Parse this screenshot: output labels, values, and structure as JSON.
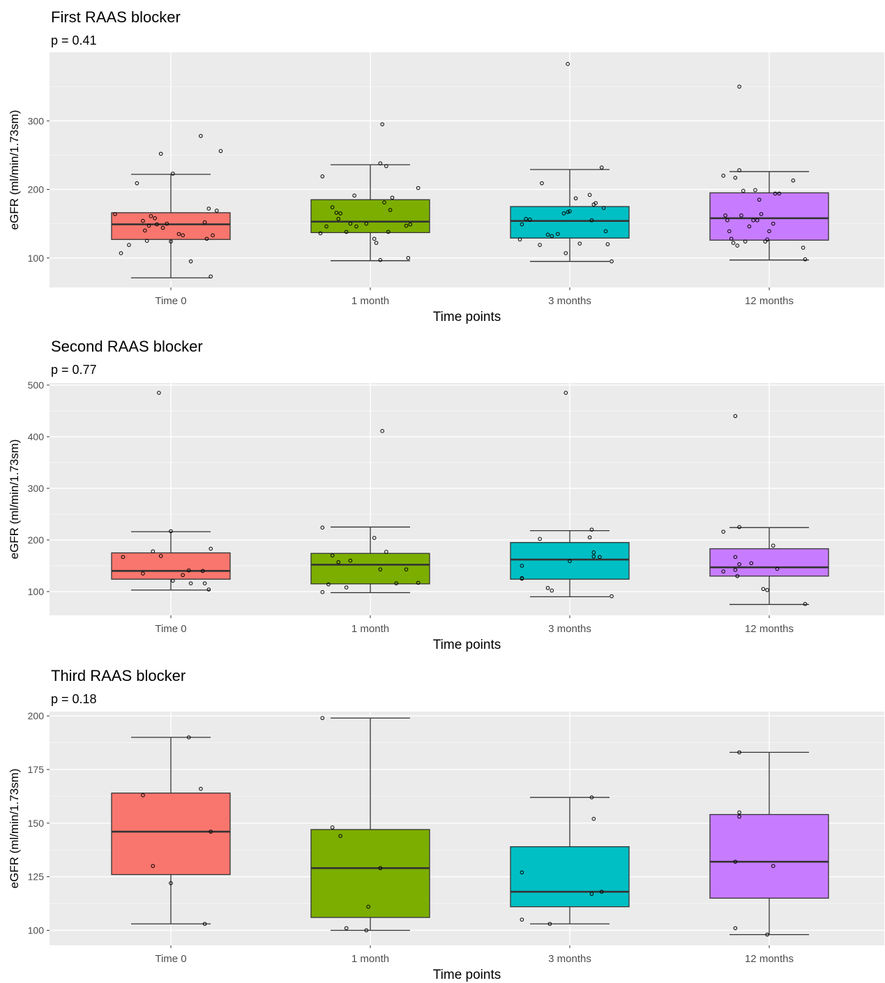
{
  "chart_data": [
    {
      "type": "box",
      "title": "First RAAS blocker",
      "subtitle": "p = 0.41",
      "xlabel": "Time points",
      "ylabel": "eGFR (ml/min/1.73sm)",
      "categories": [
        "Time 0",
        "1 month",
        "3 months",
        "12 months"
      ],
      "ylim": [
        57,
        400
      ],
      "yticks": [
        100,
        200,
        300
      ],
      "grid": true,
      "colors": [
        "#F8766D",
        "#7CAE00",
        "#00BFC4",
        "#C77CFF"
      ],
      "boxes": [
        {
          "lower_whisker": 71,
          "q1": 127,
          "median": 149,
          "q3": 166,
          "upper_whisker": 222
        },
        {
          "lower_whisker": 96,
          "q1": 137,
          "median": 153,
          "q3": 185,
          "upper_whisker": 236
        },
        {
          "lower_whisker": 95,
          "q1": 129,
          "median": 154,
          "q3": 175,
          "upper_whisker": 229
        },
        {
          "lower_whisker": 97,
          "q1": 126,
          "median": 158,
          "q3": 195,
          "upper_whisker": 226
        }
      ],
      "points": [
        [
          {
            "dx": -0.28,
            "y": 164
          },
          {
            "dx": -0.25,
            "y": 107
          },
          {
            "dx": -0.21,
            "y": 119
          },
          {
            "dx": -0.17,
            "y": 209
          },
          {
            "dx": -0.14,
            "y": 154
          },
          {
            "dx": -0.13,
            "y": 140
          },
          {
            "dx": -0.12,
            "y": 125
          },
          {
            "dx": -0.11,
            "y": 147
          },
          {
            "dx": -0.1,
            "y": 161
          },
          {
            "dx": -0.08,
            "y": 158
          },
          {
            "dx": -0.07,
            "y": 149
          },
          {
            "dx": -0.05,
            "y": 252
          },
          {
            "dx": -0.04,
            "y": 144
          },
          {
            "dx": -0.02,
            "y": 150
          },
          {
            "dx": 0.0,
            "y": 124
          },
          {
            "dx": 0.01,
            "y": 223
          },
          {
            "dx": 0.04,
            "y": 135
          },
          {
            "dx": 0.06,
            "y": 133
          },
          {
            "dx": 0.1,
            "y": 95
          },
          {
            "dx": 0.15,
            "y": 278
          },
          {
            "dx": 0.17,
            "y": 152
          },
          {
            "dx": 0.18,
            "y": 128
          },
          {
            "dx": 0.19,
            "y": 172
          },
          {
            "dx": 0.2,
            "y": 73
          },
          {
            "dx": 0.21,
            "y": 133
          },
          {
            "dx": 0.23,
            "y": 169
          },
          {
            "dx": 0.25,
            "y": 256
          }
        ],
        [
          {
            "dx": -0.25,
            "y": 136
          },
          {
            "dx": -0.24,
            "y": 219
          },
          {
            "dx": -0.22,
            "y": 146
          },
          {
            "dx": -0.19,
            "y": 174
          },
          {
            "dx": -0.17,
            "y": 166
          },
          {
            "dx": -0.16,
            "y": 157
          },
          {
            "dx": -0.15,
            "y": 165
          },
          {
            "dx": -0.12,
            "y": 138
          },
          {
            "dx": -0.1,
            "y": 150
          },
          {
            "dx": -0.08,
            "y": 191
          },
          {
            "dx": -0.07,
            "y": 146
          },
          {
            "dx": -0.02,
            "y": 150
          },
          {
            "dx": 0.02,
            "y": 128
          },
          {
            "dx": 0.03,
            "y": 122
          },
          {
            "dx": 0.05,
            "y": 97
          },
          {
            "dx": 0.05,
            "y": 238
          },
          {
            "dx": 0.06,
            "y": 295
          },
          {
            "dx": 0.07,
            "y": 181
          },
          {
            "dx": 0.08,
            "y": 234
          },
          {
            "dx": 0.09,
            "y": 138
          },
          {
            "dx": 0.1,
            "y": 170
          },
          {
            "dx": 0.11,
            "y": 188
          },
          {
            "dx": 0.18,
            "y": 147
          },
          {
            "dx": 0.19,
            "y": 100
          },
          {
            "dx": 0.2,
            "y": 149
          },
          {
            "dx": 0.24,
            "y": 202
          }
        ],
        [
          {
            "dx": -0.25,
            "y": 127
          },
          {
            "dx": -0.24,
            "y": 149
          },
          {
            "dx": -0.22,
            "y": 157
          },
          {
            "dx": -0.2,
            "y": 156
          },
          {
            "dx": -0.15,
            "y": 119
          },
          {
            "dx": -0.14,
            "y": 209
          },
          {
            "dx": -0.11,
            "y": 134
          },
          {
            "dx": -0.09,
            "y": 132
          },
          {
            "dx": -0.06,
            "y": 135
          },
          {
            "dx": -0.03,
            "y": 165
          },
          {
            "dx": -0.02,
            "y": 107
          },
          {
            "dx": -0.01,
            "y": 167
          },
          {
            "dx": -0.01,
            "y": 383
          },
          {
            "dx": 0.0,
            "y": 168
          },
          {
            "dx": 0.03,
            "y": 187
          },
          {
            "dx": 0.05,
            "y": 121
          },
          {
            "dx": 0.1,
            "y": 192
          },
          {
            "dx": 0.11,
            "y": 155
          },
          {
            "dx": 0.12,
            "y": 178
          },
          {
            "dx": 0.13,
            "y": 180
          },
          {
            "dx": 0.16,
            "y": 232
          },
          {
            "dx": 0.17,
            "y": 173
          },
          {
            "dx": 0.18,
            "y": 139
          },
          {
            "dx": 0.19,
            "y": 120
          },
          {
            "dx": 0.21,
            "y": 95
          }
        ],
        [
          {
            "dx": -0.23,
            "y": 220
          },
          {
            "dx": -0.22,
            "y": 162
          },
          {
            "dx": -0.21,
            "y": 155
          },
          {
            "dx": -0.2,
            "y": 139
          },
          {
            "dx": -0.19,
            "y": 128
          },
          {
            "dx": -0.18,
            "y": 122
          },
          {
            "dx": -0.17,
            "y": 217
          },
          {
            "dx": -0.16,
            "y": 118
          },
          {
            "dx": -0.15,
            "y": 228
          },
          {
            "dx": -0.15,
            "y": 350
          },
          {
            "dx": -0.14,
            "y": 162
          },
          {
            "dx": -0.13,
            "y": 198
          },
          {
            "dx": -0.12,
            "y": 124
          },
          {
            "dx": -0.1,
            "y": 146
          },
          {
            "dx": -0.08,
            "y": 155
          },
          {
            "dx": -0.07,
            "y": 199
          },
          {
            "dx": -0.06,
            "y": 155
          },
          {
            "dx": -0.05,
            "y": 185
          },
          {
            "dx": -0.04,
            "y": 164
          },
          {
            "dx": -0.02,
            "y": 124
          },
          {
            "dx": -0.01,
            "y": 127
          },
          {
            "dx": 0.0,
            "y": 139
          },
          {
            "dx": 0.02,
            "y": 150
          },
          {
            "dx": 0.03,
            "y": 194
          },
          {
            "dx": 0.05,
            "y": 194
          },
          {
            "dx": 0.12,
            "y": 213
          },
          {
            "dx": 0.17,
            "y": 115
          },
          {
            "dx": 0.18,
            "y": 98
          }
        ]
      ]
    },
    {
      "type": "box",
      "title": "Second RAAS blocker",
      "subtitle": "p = 0.77",
      "xlabel": "Time points",
      "ylabel": "eGFR (ml/min/1.73sm)",
      "categories": [
        "Time 0",
        "1 month",
        "3 months",
        "12 months"
      ],
      "ylim": [
        54,
        504
      ],
      "yticks": [
        100,
        200,
        300,
        400,
        500
      ],
      "grid": true,
      "colors": [
        "#F8766D",
        "#7CAE00",
        "#00BFC4",
        "#C77CFF"
      ],
      "boxes": [
        {
          "lower_whisker": 103,
          "q1": 124,
          "median": 140,
          "q3": 175,
          "upper_whisker": 216
        },
        {
          "lower_whisker": 98,
          "q1": 115,
          "median": 152,
          "q3": 174,
          "upper_whisker": 225
        },
        {
          "lower_whisker": 90,
          "q1": 124,
          "median": 162,
          "q3": 195,
          "upper_whisker": 218
        },
        {
          "lower_whisker": 75,
          "q1": 130,
          "median": 147,
          "q3": 183,
          "upper_whisker": 224
        }
      ],
      "points": [
        [
          {
            "dx": -0.24,
            "y": 167
          },
          {
            "dx": -0.14,
            "y": 135
          },
          {
            "dx": -0.09,
            "y": 178
          },
          {
            "dx": -0.06,
            "y": 485
          },
          {
            "dx": -0.05,
            "y": 169
          },
          {
            "dx": 0.0,
            "y": 217
          },
          {
            "dx": 0.01,
            "y": 121
          },
          {
            "dx": 0.06,
            "y": 132
          },
          {
            "dx": 0.09,
            "y": 141
          },
          {
            "dx": 0.1,
            "y": 116
          },
          {
            "dx": 0.16,
            "y": 140
          },
          {
            "dx": 0.17,
            "y": 116
          },
          {
            "dx": 0.19,
            "y": 104
          },
          {
            "dx": 0.2,
            "y": 183
          }
        ],
        [
          {
            "dx": -0.24,
            "y": 99
          },
          {
            "dx": -0.24,
            "y": 224
          },
          {
            "dx": -0.21,
            "y": 114
          },
          {
            "dx": -0.19,
            "y": 170
          },
          {
            "dx": -0.16,
            "y": 157
          },
          {
            "dx": -0.12,
            "y": 108
          },
          {
            "dx": -0.1,
            "y": 160
          },
          {
            "dx": 0.02,
            "y": 204
          },
          {
            "dx": 0.05,
            "y": 143
          },
          {
            "dx": 0.06,
            "y": 411
          },
          {
            "dx": 0.08,
            "y": 177
          },
          {
            "dx": 0.13,
            "y": 116
          },
          {
            "dx": 0.18,
            "y": 143
          },
          {
            "dx": 0.24,
            "y": 117
          }
        ],
        [
          {
            "dx": -0.24,
            "y": 150
          },
          {
            "dx": -0.24,
            "y": 126
          },
          {
            "dx": -0.24,
            "y": 125
          },
          {
            "dx": -0.15,
            "y": 202
          },
          {
            "dx": -0.11,
            "y": 107
          },
          {
            "dx": -0.09,
            "y": 102
          },
          {
            "dx": -0.02,
            "y": 485
          },
          {
            "dx": 0.0,
            "y": 159
          },
          {
            "dx": 0.1,
            "y": 205
          },
          {
            "dx": 0.11,
            "y": 220
          },
          {
            "dx": 0.12,
            "y": 176
          },
          {
            "dx": 0.12,
            "y": 168
          },
          {
            "dx": 0.15,
            "y": 167
          },
          {
            "dx": 0.21,
            "y": 91
          }
        ],
        [
          {
            "dx": -0.23,
            "y": 216
          },
          {
            "dx": -0.23,
            "y": 139
          },
          {
            "dx": -0.17,
            "y": 167
          },
          {
            "dx": -0.17,
            "y": 142
          },
          {
            "dx": -0.16,
            "y": 130
          },
          {
            "dx": -0.15,
            "y": 225
          },
          {
            "dx": -0.15,
            "y": 153
          },
          {
            "dx": -0.17,
            "y": 440
          },
          {
            "dx": -0.09,
            "y": 155
          },
          {
            "dx": -0.03,
            "y": 105
          },
          {
            "dx": -0.01,
            "y": 103
          },
          {
            "dx": 0.02,
            "y": 189
          },
          {
            "dx": 0.04,
            "y": 144
          },
          {
            "dx": 0.18,
            "y": 76
          }
        ]
      ]
    },
    {
      "type": "box",
      "title": "Third RAAS blocker",
      "subtitle": "p = 0.18",
      "xlabel": "Time points",
      "ylabel": "eGFR (ml/min/1.73sm)",
      "categories": [
        "Time 0",
        "1 month",
        "3 months",
        "12 months"
      ],
      "ylim": [
        93,
        202
      ],
      "yticks": [
        100,
        125,
        150,
        175,
        200
      ],
      "grid": true,
      "colors": [
        "#F8766D",
        "#7CAE00",
        "#00BFC4",
        "#C77CFF"
      ],
      "boxes": [
        {
          "lower_whisker": 103,
          "q1": 126,
          "median": 146,
          "q3": 164,
          "upper_whisker": 190
        },
        {
          "lower_whisker": 100,
          "q1": 106,
          "median": 129,
          "q3": 147,
          "upper_whisker": 199
        },
        {
          "lower_whisker": 103,
          "q1": 111,
          "median": 118,
          "q3": 139,
          "upper_whisker": 162
        },
        {
          "lower_whisker": 98,
          "q1": 115,
          "median": 132,
          "q3": 154,
          "upper_whisker": 183
        }
      ],
      "points": [
        [
          {
            "dx": -0.14,
            "y": 163
          },
          {
            "dx": -0.09,
            "y": 130
          },
          {
            "dx": 0.0,
            "y": 122
          },
          {
            "dx": 0.09,
            "y": 190
          },
          {
            "dx": 0.15,
            "y": 166
          },
          {
            "dx": 0.17,
            "y": 103
          },
          {
            "dx": 0.2,
            "y": 146
          }
        ],
        [
          {
            "dx": -0.24,
            "y": 199
          },
          {
            "dx": -0.19,
            "y": 148
          },
          {
            "dx": -0.15,
            "y": 144
          },
          {
            "dx": -0.12,
            "y": 101
          },
          {
            "dx": -0.01,
            "y": 111
          },
          {
            "dx": 0.05,
            "y": 129
          },
          {
            "dx": -0.02,
            "y": 100
          }
        ],
        [
          {
            "dx": -0.24,
            "y": 105
          },
          {
            "dx": -0.24,
            "y": 127
          },
          {
            "dx": -0.1,
            "y": 103
          },
          {
            "dx": 0.11,
            "y": 162
          },
          {
            "dx": 0.12,
            "y": 152
          },
          {
            "dx": 0.11,
            "y": 117
          },
          {
            "dx": 0.16,
            "y": 118
          }
        ],
        [
          {
            "dx": -0.17,
            "y": 101
          },
          {
            "dx": -0.17,
            "y": 132
          },
          {
            "dx": -0.15,
            "y": 155
          },
          {
            "dx": -0.15,
            "y": 153
          },
          {
            "dx": -0.15,
            "y": 183
          },
          {
            "dx": 0.02,
            "y": 130
          },
          {
            "dx": -0.01,
            "y": 98
          }
        ]
      ]
    }
  ]
}
